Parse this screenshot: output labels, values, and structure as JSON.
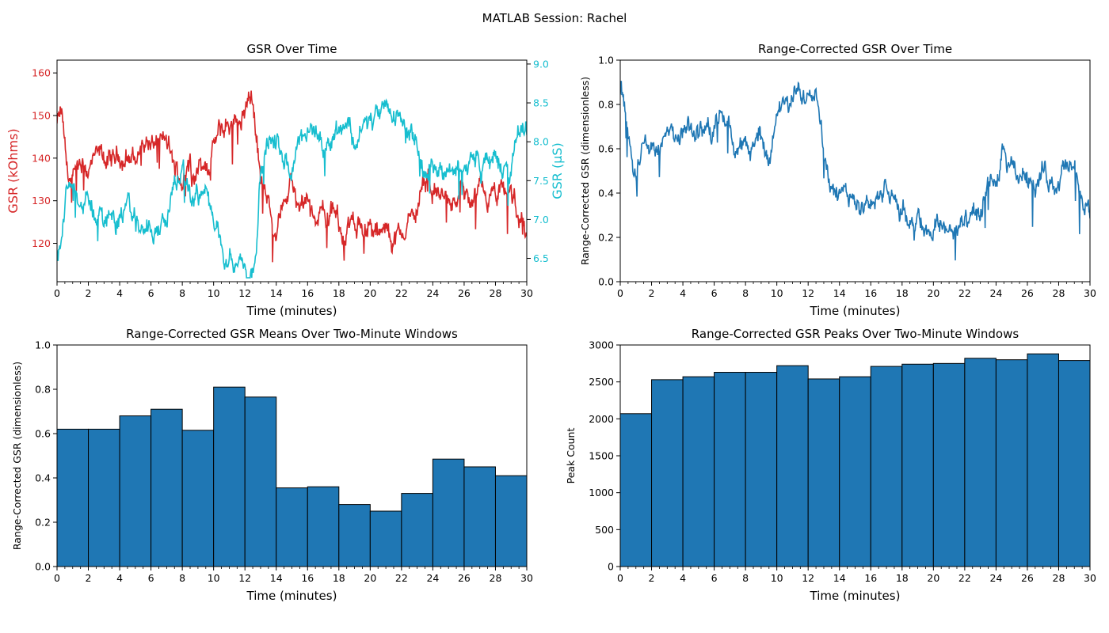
{
  "suptitle": "MATLAB Session: Rachel",
  "colors": {
    "red": "#d62728",
    "cyan": "#17becf",
    "blue": "#1f77b4"
  },
  "chart_data": [
    {
      "type": "line",
      "title": "GSR Over Time",
      "xlabel": "Time (minutes)",
      "xlim": [
        0,
        30
      ],
      "xticks": [
        "0",
        "2",
        "4",
        "6",
        "8",
        "10",
        "12",
        "14",
        "16",
        "18",
        "20",
        "22",
        "24",
        "26",
        "28",
        "30"
      ],
      "y_left": {
        "label": "GSR (kOhms)",
        "lim": [
          111,
          163
        ],
        "ticks": [
          "120",
          "130",
          "140",
          "150",
          "160"
        ],
        "series_points": [
          [
            0,
            148
          ],
          [
            0.3,
            150
          ],
          [
            0.6,
            137
          ],
          [
            1,
            133
          ],
          [
            1.5,
            136
          ],
          [
            2,
            137
          ],
          [
            2.5,
            139
          ],
          [
            3,
            140
          ],
          [
            3.5,
            138
          ],
          [
            4,
            141
          ],
          [
            4.5,
            140
          ],
          [
            5,
            140
          ],
          [
            5.5,
            144
          ],
          [
            6,
            143
          ],
          [
            6.5,
            144
          ],
          [
            7,
            143
          ],
          [
            7.5,
            137
          ],
          [
            8,
            135
          ],
          [
            8.5,
            138
          ],
          [
            9,
            138
          ],
          [
            9.5,
            136
          ],
          [
            10,
            143
          ],
          [
            10.5,
            146
          ],
          [
            11,
            148
          ],
          [
            11.5,
            150
          ],
          [
            12,
            152
          ],
          [
            12.5,
            155
          ],
          [
            13,
            135
          ],
          [
            13.5,
            128
          ],
          [
            14,
            126
          ],
          [
            14.5,
            130
          ],
          [
            15,
            133
          ],
          [
            15.5,
            126
          ],
          [
            16,
            128
          ],
          [
            16.5,
            125
          ],
          [
            17,
            128
          ],
          [
            17.5,
            127
          ],
          [
            18,
            124
          ],
          [
            18.5,
            123
          ],
          [
            19,
            126
          ],
          [
            19.5,
            124
          ],
          [
            20,
            123
          ],
          [
            20.5,
            121
          ],
          [
            21,
            122
          ],
          [
            21.5,
            122
          ],
          [
            22,
            121
          ],
          [
            22.5,
            126
          ],
          [
            23,
            127
          ],
          [
            23.5,
            134
          ],
          [
            24,
            133
          ],
          [
            24.5,
            131
          ],
          [
            25,
            130
          ],
          [
            25.5,
            130
          ],
          [
            26,
            131
          ],
          [
            26.5,
            128
          ],
          [
            27,
            131
          ],
          [
            27.5,
            130
          ],
          [
            28,
            130
          ],
          [
            28.5,
            131
          ],
          [
            29,
            132
          ],
          [
            29.5,
            126
          ],
          [
            30,
            122
          ]
        ]
      },
      "y_right": {
        "label": "GSR (µS)",
        "lim": [
          6.2,
          9.05
        ],
        "ticks": [
          "6.5",
          "7.0",
          "7.5",
          "8.0",
          "8.5",
          "9.0"
        ],
        "series_points": [
          [
            0,
            6.6
          ],
          [
            0.3,
            6.85
          ],
          [
            0.6,
            7.3
          ],
          [
            1,
            7.4
          ],
          [
            1.5,
            7.3
          ],
          [
            2,
            7.15
          ],
          [
            2.5,
            7.1
          ],
          [
            3,
            7.0
          ],
          [
            3.5,
            7.1
          ],
          [
            4,
            7.05
          ],
          [
            4.5,
            7.1
          ],
          [
            5,
            7.0
          ],
          [
            5.5,
            6.9
          ],
          [
            6,
            6.95
          ],
          [
            6.5,
            6.9
          ],
          [
            7,
            6.95
          ],
          [
            7.5,
            7.5
          ],
          [
            8,
            7.5
          ],
          [
            8.5,
            7.3
          ],
          [
            9,
            7.3
          ],
          [
            9.5,
            7.4
          ],
          [
            10,
            6.85
          ],
          [
            10.5,
            6.7
          ],
          [
            11,
            6.6
          ],
          [
            11.5,
            6.5
          ],
          [
            12,
            6.4
          ],
          [
            12.5,
            6.3
          ],
          [
            13,
            7.6
          ],
          [
            13.5,
            8.0
          ],
          [
            14,
            8.0
          ],
          [
            14.5,
            7.7
          ],
          [
            15,
            7.6
          ],
          [
            15.5,
            8.1
          ],
          [
            16,
            8.0
          ],
          [
            16.5,
            8.2
          ],
          [
            17,
            8.0
          ],
          [
            17.5,
            8.1
          ],
          [
            18,
            8.2
          ],
          [
            18.5,
            8.3
          ],
          [
            19,
            8.0
          ],
          [
            19.5,
            8.2
          ],
          [
            20,
            8.25
          ],
          [
            20.5,
            8.3
          ],
          [
            21,
            8.35
          ],
          [
            21.5,
            8.3
          ],
          [
            22,
            8.4
          ],
          [
            22.5,
            8.0
          ],
          [
            23,
            7.95
          ],
          [
            23.5,
            7.5
          ],
          [
            24,
            7.55
          ],
          [
            24.5,
            7.65
          ],
          [
            25,
            7.7
          ],
          [
            25.5,
            7.7
          ],
          [
            26,
            7.65
          ],
          [
            26.5,
            7.85
          ],
          [
            27,
            7.7
          ],
          [
            27.5,
            7.75
          ],
          [
            28,
            7.75
          ],
          [
            28.5,
            7.65
          ],
          [
            29,
            7.6
          ],
          [
            29.5,
            8.1
          ],
          [
            30,
            8.3
          ]
        ]
      }
    },
    {
      "type": "line",
      "title": "Range-Corrected GSR Over Time",
      "xlabel": "Time (minutes)",
      "ylabel": "Range-Corrected GSR (dimensionless)",
      "xlim": [
        0,
        30
      ],
      "ylim": [
        0,
        1.0
      ],
      "xticks": [
        "0",
        "2",
        "4",
        "6",
        "8",
        "10",
        "12",
        "14",
        "16",
        "18",
        "20",
        "22",
        "24",
        "26",
        "28",
        "30"
      ],
      "yticks": [
        "0.0",
        "0.2",
        "0.4",
        "0.6",
        "0.8",
        "1.0"
      ],
      "series_points": [
        [
          0,
          0.85
        ],
        [
          0.3,
          0.82
        ],
        [
          0.6,
          0.6
        ],
        [
          1,
          0.55
        ],
        [
          1.5,
          0.6
        ],
        [
          2,
          0.6
        ],
        [
          2.5,
          0.64
        ],
        [
          3,
          0.65
        ],
        [
          3.5,
          0.62
        ],
        [
          4,
          0.67
        ],
        [
          4.5,
          0.66
        ],
        [
          5,
          0.66
        ],
        [
          5.5,
          0.72
        ],
        [
          6,
          0.7
        ],
        [
          6.5,
          0.73
        ],
        [
          7,
          0.7
        ],
        [
          7.5,
          0.6
        ],
        [
          8,
          0.58
        ],
        [
          8.5,
          0.63
        ],
        [
          9,
          0.64
        ],
        [
          9.5,
          0.6
        ],
        [
          10,
          0.72
        ],
        [
          10.5,
          0.78
        ],
        [
          11,
          0.8
        ],
        [
          11.5,
          0.85
        ],
        [
          12,
          0.88
        ],
        [
          12.5,
          0.93
        ],
        [
          13,
          0.6
        ],
        [
          13.5,
          0.45
        ],
        [
          14,
          0.35
        ],
        [
          14.5,
          0.38
        ],
        [
          15,
          0.42
        ],
        [
          15.5,
          0.33
        ],
        [
          16,
          0.4
        ],
        [
          16.5,
          0.37
        ],
        [
          17,
          0.4
        ],
        [
          17.5,
          0.35
        ],
        [
          18,
          0.3
        ],
        [
          18.5,
          0.28
        ],
        [
          19,
          0.3
        ],
        [
          19.5,
          0.26
        ],
        [
          20,
          0.25
        ],
        [
          20.5,
          0.26
        ],
        [
          21,
          0.25
        ],
        [
          21.5,
          0.25
        ],
        [
          22,
          0.24
        ],
        [
          22.5,
          0.28
        ],
        [
          23,
          0.3
        ],
        [
          23.5,
          0.42
        ],
        [
          24,
          0.45
        ],
        [
          24.5,
          0.55
        ],
        [
          25,
          0.48
        ],
        [
          25.5,
          0.47
        ],
        [
          26,
          0.5
        ],
        [
          26.5,
          0.45
        ],
        [
          27,
          0.48
        ],
        [
          27.5,
          0.47
        ],
        [
          28,
          0.47
        ],
        [
          28.5,
          0.5
        ],
        [
          29,
          0.5
        ],
        [
          29.5,
          0.35
        ],
        [
          30,
          0.3
        ]
      ]
    },
    {
      "type": "bar",
      "title": "Range-Corrected GSR Means Over Two-Minute Windows",
      "xlabel": "Time (minutes)",
      "ylabel": "Range-Corrected GSR (dimensionless)",
      "xlim": [
        0,
        30
      ],
      "ylim": [
        0,
        1.0
      ],
      "xticks": [
        "0",
        "2",
        "4",
        "6",
        "8",
        "10",
        "12",
        "14",
        "16",
        "18",
        "20",
        "22",
        "24",
        "26",
        "28",
        "30"
      ],
      "yticks": [
        "0.0",
        "0.2",
        "0.4",
        "0.6",
        "0.8",
        "1.0"
      ],
      "bin_width": 2,
      "bin_starts": [
        0,
        2,
        4,
        6,
        8,
        10,
        12,
        14,
        16,
        18,
        20,
        22,
        24,
        26,
        28
      ],
      "values": [
        0.62,
        0.62,
        0.68,
        0.71,
        0.615,
        0.81,
        0.765,
        0.355,
        0.36,
        0.28,
        0.25,
        0.33,
        0.485,
        0.45,
        0.41
      ]
    },
    {
      "type": "bar",
      "title": "Range-Corrected GSR Peaks Over Two-Minute Windows",
      "xlabel": "Time (minutes)",
      "ylabel": "Peak Count",
      "xlim": [
        0,
        30
      ],
      "ylim": [
        0,
        3000
      ],
      "xticks": [
        "0",
        "2",
        "4",
        "6",
        "8",
        "10",
        "12",
        "14",
        "16",
        "18",
        "20",
        "22",
        "24",
        "26",
        "28",
        "30"
      ],
      "yticks": [
        "0",
        "500",
        "1000",
        "1500",
        "2000",
        "2500",
        "3000"
      ],
      "bin_width": 2,
      "bin_starts": [
        0,
        2,
        4,
        6,
        8,
        10,
        12,
        14,
        16,
        18,
        20,
        22,
        24,
        26,
        28
      ],
      "values": [
        2070,
        2530,
        2570,
        2630,
        2630,
        2720,
        2540,
        2570,
        2710,
        2740,
        2750,
        2820,
        2800,
        2880,
        2790
      ]
    }
  ]
}
